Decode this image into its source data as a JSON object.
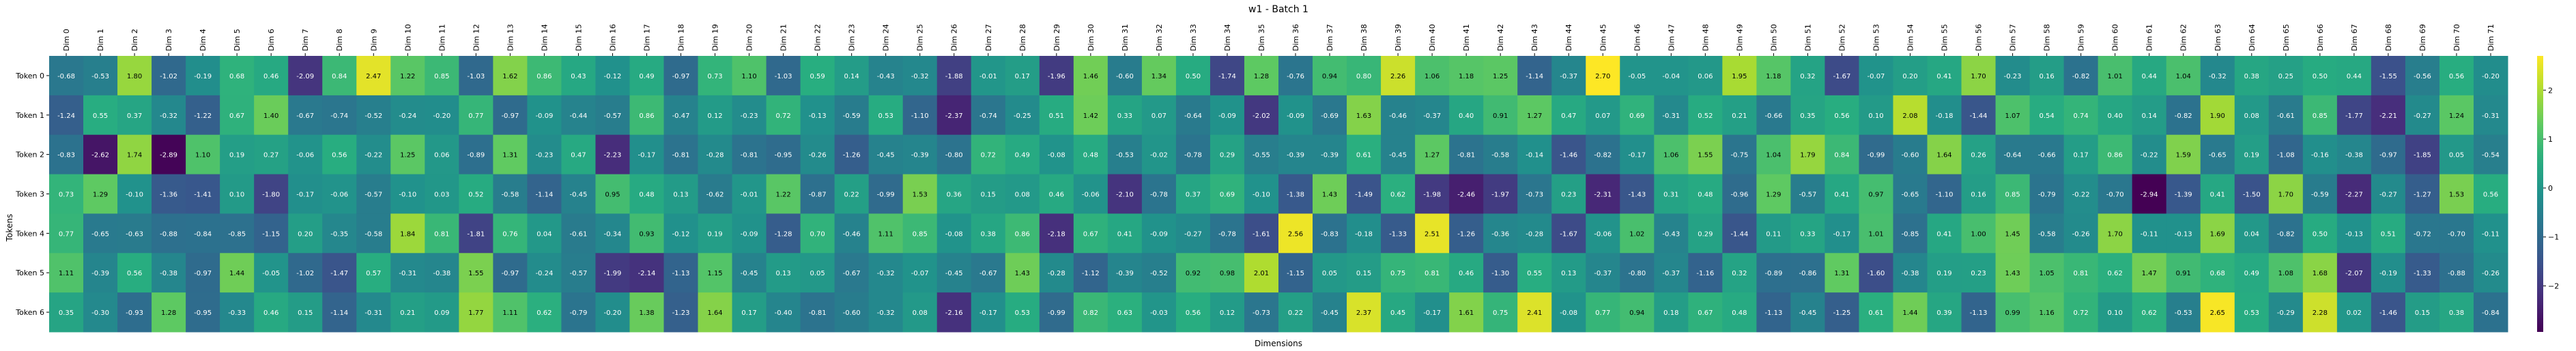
{
  "chart_data": {
    "type": "heatmap",
    "title": "w1 - Batch 1",
    "xlabel": "Dimensions",
    "ylabel": "Tokens",
    "x_categories": [
      "Dim 0",
      "Dim 1",
      "Dim 2",
      "Dim 3",
      "Dim 4",
      "Dim 5",
      "Dim 6",
      "Dim 7",
      "Dim 8",
      "Dim 9",
      "Dim 10",
      "Dim 11",
      "Dim 12",
      "Dim 13",
      "Dim 14",
      "Dim 15",
      "Dim 16",
      "Dim 17",
      "Dim 18",
      "Dim 19",
      "Dim 20",
      "Dim 21",
      "Dim 22",
      "Dim 23",
      "Dim 24",
      "Dim 25",
      "Dim 26",
      "Dim 27",
      "Dim 28",
      "Dim 29",
      "Dim 30",
      "Dim 31",
      "Dim 32",
      "Dim 33",
      "Dim 34",
      "Dim 35",
      "Dim 36",
      "Dim 37",
      "Dim 38",
      "Dim 39",
      "Dim 40",
      "Dim 41",
      "Dim 42",
      "Dim 43",
      "Dim 44",
      "Dim 45",
      "Dim 46",
      "Dim 47",
      "Dim 48",
      "Dim 49",
      "Dim 50",
      "Dim 51",
      "Dim 52",
      "Dim 53",
      "Dim 54",
      "Dim 55",
      "Dim 56",
      "Dim 57",
      "Dim 58",
      "Dim 59",
      "Dim 60",
      "Dim 61",
      "Dim 62",
      "Dim 63",
      "Dim 64",
      "Dim 65",
      "Dim 66",
      "Dim 67",
      "Dim 68",
      "Dim 69",
      "Dim 70",
      "Dim 71"
    ],
    "y_categories": [
      "Token 0",
      "Token 1",
      "Token 2",
      "Token 3",
      "Token 4",
      "Token 5",
      "Token 6"
    ],
    "values": [
      [
        -0.68,
        -0.53,
        1.8,
        -1.02,
        -0.19,
        0.68,
        0.46,
        -2.09,
        0.84,
        2.47,
        1.22,
        0.85,
        -1.03,
        1.62,
        0.86,
        0.43,
        -0.12,
        0.49,
        -0.97,
        0.73,
        1.1,
        -1.03,
        0.59,
        0.14,
        -0.43,
        -0.32,
        -1.88,
        -0.01,
        0.17,
        -1.96,
        1.46,
        -0.6,
        1.34,
        0.5,
        -1.74,
        1.28,
        -0.76,
        0.94,
        0.8,
        2.26,
        1.06,
        1.18,
        1.25,
        -1.14,
        -0.37,
        2.7,
        -0.05,
        -0.04,
        0.06,
        1.95,
        1.18,
        0.32,
        -1.67,
        -0.07,
        0.2,
        0.41,
        1.7,
        -0.23,
        0.16,
        -0.82,
        1.01,
        0.44,
        1.04,
        -0.32,
        0.38,
        0.25,
        0.5,
        0.44,
        -1.55,
        -0.56,
        0.56,
        -0.2
      ],
      [
        -1.24,
        0.55,
        0.37,
        -0.32,
        -1.22,
        0.67,
        1.4,
        -0.67,
        -0.74,
        -0.52,
        -0.24,
        -0.2,
        0.77,
        -0.97,
        -0.09,
        -0.44,
        -0.57,
        0.86,
        -0.47,
        0.12,
        -0.23,
        0.72,
        -0.13,
        -0.59,
        0.53,
        -1.1,
        -2.37,
        -0.74,
        -0.25,
        0.51,
        1.42,
        0.33,
        0.07,
        -0.64,
        -0.09,
        -2.02,
        -0.09,
        -0.69,
        1.63,
        -0.46,
        -0.37,
        0.4,
        0.91,
        1.27,
        0.47,
        0.07,
        0.69,
        -0.31,
        0.52,
        0.21,
        -0.66,
        0.35,
        0.56,
        0.1,
        2.08,
        -0.18,
        -1.44,
        1.07,
        0.54,
        0.74,
        0.4,
        0.14,
        -0.82,
        1.9,
        0.08,
        -0.61,
        0.85,
        -1.77,
        -2.21,
        -0.27,
        1.24,
        -0.31
      ],
      [
        -0.83,
        -2.62,
        1.74,
        -2.89,
        1.1,
        0.19,
        0.27,
        -0.06,
        0.56,
        -0.22,
        1.25,
        0.06,
        -0.89,
        1.31,
        -0.23,
        0.47,
        -2.23,
        -0.17,
        -0.81,
        -0.28,
        -0.81,
        -0.95,
        -0.26,
        -1.26,
        -0.45,
        -0.39,
        -0.8,
        0.72,
        0.49,
        -0.08,
        0.48,
        -0.53,
        -0.02,
        -0.78,
        0.29,
        -0.55,
        -0.39,
        -0.39,
        0.61,
        -0.45,
        1.27,
        -0.81,
        -0.58,
        -0.14,
        -1.46,
        -0.82,
        -0.17,
        1.06,
        1.55,
        -0.75,
        1.04,
        1.79,
        0.84,
        -0.99,
        -0.6,
        1.64,
        0.26,
        -0.64,
        -0.66,
        0.17,
        0.86,
        -0.22,
        1.59,
        -0.65,
        0.19,
        -1.08,
        -0.16,
        -0.38,
        -0.97,
        -1.85,
        0.05,
        -0.54
      ],
      [
        0.73,
        1.29,
        -0.1,
        -1.36,
        -1.41,
        0.1,
        -1.8,
        -0.17,
        -0.06,
        -0.57,
        -0.1,
        0.03,
        0.52,
        -0.58,
        -1.14,
        -0.45,
        0.95,
        0.48,
        0.13,
        -0.62,
        -0.01,
        1.22,
        -0.87,
        0.22,
        -0.99,
        1.53,
        0.36,
        0.15,
        0.08,
        0.46,
        -0.06,
        -2.1,
        -0.78,
        0.37,
        0.69,
        -0.1,
        -1.38,
        1.43,
        -1.49,
        0.62,
        -1.98,
        -2.46,
        -1.97,
        -0.73,
        0.23,
        -2.31,
        -1.43,
        0.31,
        0.48,
        -0.96,
        1.29,
        -0.57,
        0.41,
        0.97,
        -0.65,
        -1.1,
        0.16,
        0.85,
        -0.79,
        -0.22,
        -0.7,
        -2.94,
        -1.39,
        0.41,
        -1.5,
        1.7,
        -0.59,
        -2.27,
        -0.27,
        -1.27,
        1.53,
        0.56
      ],
      [
        0.77,
        -0.65,
        -0.63,
        -0.88,
        -0.84,
        -0.85,
        -1.15,
        0.2,
        -0.35,
        -0.58,
        1.84,
        0.81,
        -1.81,
        0.76,
        0.04,
        -0.61,
        -0.34,
        0.93,
        -0.12,
        0.19,
        -0.09,
        -1.28,
        0.7,
        -0.46,
        1.11,
        0.85,
        -0.08,
        0.38,
        0.86,
        -2.18,
        0.67,
        0.41,
        -0.09,
        -0.27,
        -0.78,
        -1.61,
        2.56,
        -0.83,
        -0.18,
        -1.33,
        2.51,
        -1.26,
        -0.36,
        -0.28,
        -1.67,
        -0.06,
        1.02,
        -0.43,
        0.29,
        -1.44,
        0.11,
        0.33,
        -0.17,
        1.01,
        -0.85,
        0.41,
        1.0,
        1.45,
        -0.58,
        -0.26,
        1.7,
        -0.11,
        -0.13,
        1.69,
        0.04,
        -0.82,
        0.5,
        -0.13,
        0.51,
        -0.72,
        -0.7,
        -0.11
      ],
      [
        1.11,
        -0.39,
        0.56,
        -0.38,
        -0.97,
        1.44,
        -0.05,
        -1.02,
        -1.47,
        0.57,
        -0.31,
        -0.38,
        1.55,
        -0.97,
        -0.24,
        -0.57,
        -1.99,
        -2.14,
        -1.13,
        1.15,
        -0.45,
        0.13,
        0.05,
        -0.67,
        -0.32,
        -0.07,
        -0.45,
        -0.67,
        1.43,
        -0.28,
        -1.12,
        -0.39,
        -0.52,
        0.92,
        0.98,
        2.01,
        -1.15,
        0.05,
        0.15,
        0.75,
        0.81,
        0.46,
        -1.3,
        0.55,
        0.13,
        -0.37,
        -0.8,
        -0.37,
        -1.16,
        0.32,
        -0.89,
        -0.86,
        1.31,
        -1.6,
        -0.38,
        0.19,
        0.23,
        1.43,
        1.05,
        0.81,
        0.62,
        1.47,
        0.91,
        0.68,
        0.49,
        1.08,
        1.68,
        -2.07,
        -0.19,
        -1.33,
        -0.88,
        -0.26
      ],
      [
        0.35,
        -0.3,
        -0.93,
        1.28,
        -0.95,
        -0.33,
        0.46,
        0.15,
        -1.14,
        -0.31,
        0.21,
        0.09,
        1.77,
        1.11,
        0.62,
        -0.79,
        -0.2,
        1.38,
        -1.23,
        1.64,
        0.17,
        -0.4,
        -0.81,
        -0.6,
        -0.32,
        0.08,
        -2.16,
        -0.17,
        0.53,
        -0.99,
        0.82,
        0.63,
        -0.03,
        0.56,
        0.12,
        -0.73,
        0.22,
        -0.45,
        2.37,
        0.45,
        -0.17,
        1.61,
        0.75,
        2.41,
        -0.08,
        0.77,
        0.94,
        0.18,
        0.67,
        0.48,
        -1.13,
        -0.45,
        -1.25,
        0.61,
        1.44,
        0.39,
        -1.13,
        0.99,
        1.16,
        0.72,
        0.1,
        0.62,
        -0.53,
        2.65,
        0.53,
        -0.29,
        2.28,
        0.02,
        -1.46,
        0.15,
        0.38,
        -0.84
      ]
    ],
    "colorbar": {
      "min": -2.94,
      "max": 2.7,
      "ticks": [
        2,
        1,
        0,
        -1,
        -2
      ]
    },
    "colormap": "viridis",
    "grid": false,
    "legend": "colorbar-right"
  }
}
